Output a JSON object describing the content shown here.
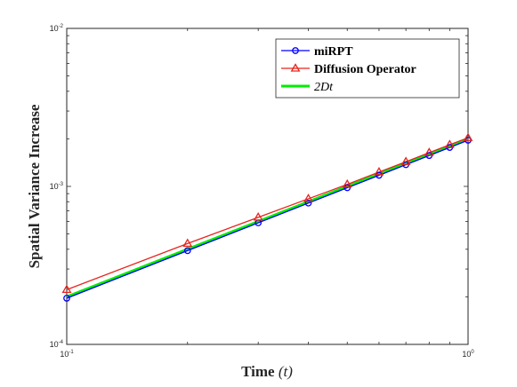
{
  "chart_data": {
    "type": "line",
    "title": "",
    "xlabel": "Time",
    "xlabel_var": "(t)",
    "ylabel": "Spatial Variance Increase",
    "x_scale": "log",
    "y_scale": "log",
    "xlim": [
      0.1,
      1
    ],
    "ylim": [
      0.0001,
      0.01
    ],
    "grid": false,
    "legend_position": "top-right",
    "x_ticks": [
      {
        "value": 0.1,
        "base": "10",
        "exp": "-1"
      },
      {
        "value": 1,
        "base": "10",
        "exp": "0"
      }
    ],
    "y_ticks": [
      {
        "value": 0.0001,
        "base": "10",
        "exp": "-4"
      },
      {
        "value": 0.001,
        "base": "10",
        "exp": "-3"
      },
      {
        "value": 0.01,
        "base": "10",
        "exp": "-2"
      }
    ],
    "x": [
      0.1,
      0.2,
      0.3,
      0.4,
      0.5,
      0.6,
      0.7,
      0.8,
      0.9,
      1.0
    ],
    "series": [
      {
        "name": "miRPT",
        "color": "#0000ff",
        "marker": "circle",
        "values": [
          0.000196,
          0.000392,
          0.000588,
          0.000784,
          0.00098,
          0.001176,
          0.001372,
          0.001568,
          0.001764,
          0.00196
        ]
      },
      {
        "name": "Diffusion Operator",
        "color": "#e8231b",
        "marker": "triangle",
        "values": [
          0.000222,
          0.000435,
          0.000637,
          0.000835,
          0.00103,
          0.001233,
          0.001432,
          0.001635,
          0.001835,
          0.00203
        ]
      },
      {
        "name": "2Dt",
        "name_display": "2",
        "name_italic": "Dt",
        "color": "#00ee00",
        "marker": "none",
        "values": [
          0.0002,
          0.0004,
          0.0006,
          0.0008,
          0.001,
          0.0012,
          0.0014,
          0.0016,
          0.0018,
          0.002
        ]
      }
    ]
  }
}
